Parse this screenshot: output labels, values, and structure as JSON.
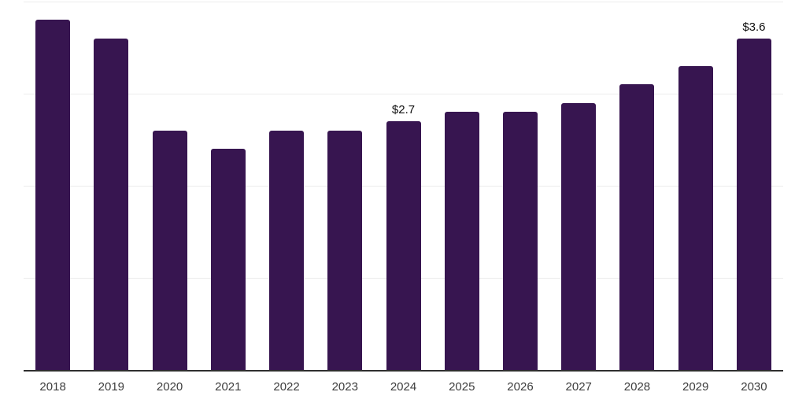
{
  "chart_data": {
    "type": "bar",
    "title": "",
    "xlabel": "",
    "ylabel": "",
    "categories": [
      "2018",
      "2019",
      "2020",
      "2021",
      "2022",
      "2023",
      "2024",
      "2025",
      "2026",
      "2027",
      "2028",
      "2029",
      "2030"
    ],
    "values": [
      3.8,
      3.6,
      2.6,
      2.4,
      2.6,
      2.6,
      2.7,
      2.8,
      2.8,
      2.9,
      3.1,
      3.3,
      3.6
    ],
    "data_labels": [
      "",
      "",
      "",
      "",
      "",
      "",
      "$2.7",
      "",
      "",
      "",
      "",
      "",
      "$3.6"
    ],
    "value_unit": "USD (trillions implied by $ labels)",
    "ylim": [
      0,
      4
    ],
    "gridline_values": [
      1,
      2,
      3,
      4
    ],
    "grid": "horizontal-light",
    "legend": "none",
    "y_tick_labels_visible": false,
    "colors": {
      "bar": "#371550",
      "grid": "#ececec",
      "axis": "#2f2f2f",
      "x_tick_label": "#3d3d3d",
      "data_label": "#0f0f0f",
      "background": "#ffffff"
    }
  }
}
